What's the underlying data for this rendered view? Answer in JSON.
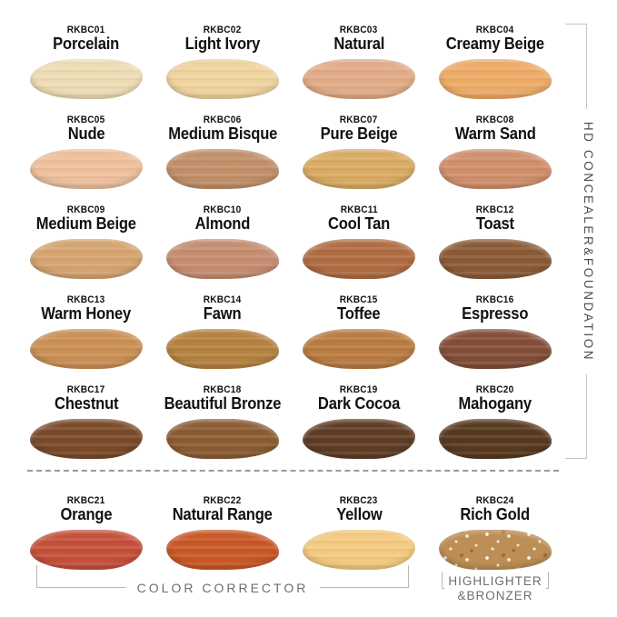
{
  "shades": [
    {
      "code": "RKBC01",
      "name": "Porcelain",
      "color": "#efddb4",
      "group": "concealer"
    },
    {
      "code": "RKBC02",
      "name": "Light Ivory",
      "color": "#f0d49e",
      "group": "concealer"
    },
    {
      "code": "RKBC03",
      "name": "Natural",
      "color": "#e2ac87",
      "group": "concealer"
    },
    {
      "code": "RKBC04",
      "name": "Creamy Beige",
      "color": "#eeab66",
      "group": "concealer"
    },
    {
      "code": "RKBC05",
      "name": "Nude",
      "color": "#eec09c",
      "group": "concealer"
    },
    {
      "code": "RKBC06",
      "name": "Medium Bisque",
      "color": "#c18f68",
      "group": "concealer"
    },
    {
      "code": "RKBC07",
      "name": "Pure Beige",
      "color": "#d9ab62",
      "group": "concealer"
    },
    {
      "code": "RKBC08",
      "name": "Warm Sand",
      "color": "#d08f6b",
      "group": "concealer"
    },
    {
      "code": "RKBC09",
      "name": "Medium Beige",
      "color": "#d5a470",
      "group": "concealer"
    },
    {
      "code": "RKBC10",
      "name": "Almond",
      "color": "#c68d71",
      "group": "concealer"
    },
    {
      "code": "RKBC11",
      "name": "Cool Tan",
      "color": "#b06c42",
      "group": "concealer"
    },
    {
      "code": "RKBC12",
      "name": "Toast",
      "color": "#8a5a36",
      "group": "concealer"
    },
    {
      "code": "RKBC13",
      "name": "Warm Honey",
      "color": "#cb9055",
      "group": "concealer"
    },
    {
      "code": "RKBC14",
      "name": "Fawn",
      "color": "#b5823f",
      "group": "concealer"
    },
    {
      "code": "RKBC15",
      "name": "Toffee",
      "color": "#b97c41",
      "group": "concealer"
    },
    {
      "code": "RKBC16",
      "name": "Espresso",
      "color": "#834e38",
      "group": "concealer"
    },
    {
      "code": "RKBC17",
      "name": "Chestnut",
      "color": "#7a4a29",
      "group": "concealer"
    },
    {
      "code": "RKBC18",
      "name": "Beautiful Bronze",
      "color": "#8b5c33",
      "group": "concealer"
    },
    {
      "code": "RKBC19",
      "name": "Dark Cocoa",
      "color": "#5f3c25",
      "group": "concealer"
    },
    {
      "code": "RKBC20",
      "name": "Mahogany",
      "color": "#57391f",
      "group": "concealer"
    },
    {
      "code": "RKBC21",
      "name": "Orange",
      "color": "#c6503a",
      "group": "corrector"
    },
    {
      "code": "RKBC22",
      "name": "Natural Range",
      "color": "#ca5724",
      "group": "corrector"
    },
    {
      "code": "RKBC23",
      "name": "Yellow",
      "color": "#f4cb7e",
      "group": "corrector"
    },
    {
      "code": "RKBC24",
      "name": "Rich Gold",
      "color": "#bd8e55",
      "group": "corrector",
      "sparkle": true
    }
  ],
  "sections": {
    "right_label": "HD CONCEALER&FOUNDATION",
    "color_corrector": "COLOR CORRECTOR",
    "highlighter_line1": "HIGHLIGHTER",
    "highlighter_line2": "&BRONZER"
  },
  "colors": {
    "bracket_line": "#c4c4c4",
    "bracket_line2": "#b9b9b9",
    "bracket_text": "#4d4d4d",
    "bottom_text": "#6e6e6e",
    "divider": "#9a9a9a"
  }
}
